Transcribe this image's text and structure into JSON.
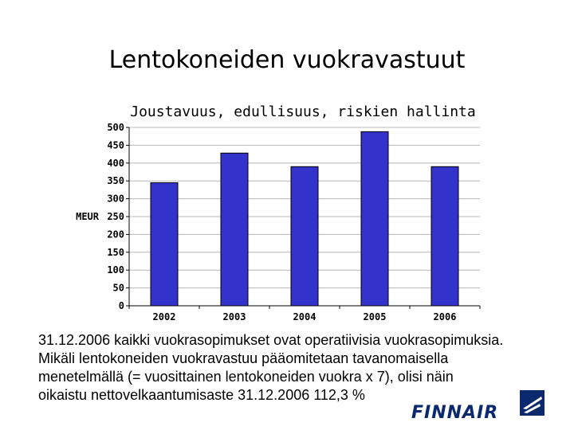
{
  "slide": {
    "title": "Lentokoneiden vuokravastuut"
  },
  "chart_data": {
    "type": "bar",
    "title": "Joustavuus, edullisuus, riskien hallinta",
    "ylabel": "MEUR",
    "xlabel": "",
    "categories": [
      "2002",
      "2003",
      "2004",
      "2005",
      "2006"
    ],
    "values": [
      345,
      428,
      390,
      488,
      390
    ],
    "ylim": [
      0,
      500
    ],
    "yticks": [
      "0",
      "50",
      "100",
      "150",
      "200",
      "250",
      "300",
      "350",
      "400",
      "450",
      "500"
    ],
    "grid": true,
    "bar_color": "#3333cc"
  },
  "body": {
    "lines": [
      "31.12.2006 kaikki vuokrasopimukset ovat operatiivisia vuokrasopimuksia.",
      "Mikäli lentokoneiden vuokravastuu pääomitetaan tavanomaisella",
      "menetelmällä (= vuosittainen lentokoneiden vuokra x 7), olisi näin",
      "oikaistu nettovelkaantumisaste 31.12.2006  112,3 %"
    ]
  },
  "logo": {
    "text": "FINNAIR",
    "color": "#0b2a6e"
  }
}
